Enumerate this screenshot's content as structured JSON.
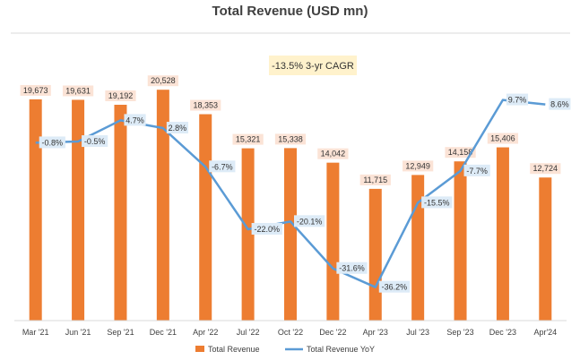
{
  "chart_data": {
    "type": "bar",
    "title": "Total Revenue (USD mn)",
    "categories": [
      "Mar '21",
      "Jun '21",
      "Sep '21",
      "Dec '21",
      "Apr '22",
      "Jul '22",
      "Oct '22",
      "Dec '22",
      "Apr '23",
      "Jul '23",
      "Sep '23",
      "Dec '23",
      "Apr'24"
    ],
    "series": [
      {
        "name": "Total Revenue",
        "kind": "bar",
        "color": "#ED7D31",
        "values": [
          19673,
          19631,
          19192,
          20528,
          18353,
          15321,
          15338,
          14042,
          11715,
          12949,
          14158,
          15406,
          12724
        ],
        "labels": [
          "19,673",
          "19,631",
          "19,192",
          "20,528",
          "18,353",
          "15,321",
          "15,338",
          "14,042",
          "11,715",
          "12,949",
          "14,158",
          "15,406",
          "12,724"
        ]
      },
      {
        "name": "Total Revenue YoY",
        "kind": "line",
        "color": "#5B9BD5",
        "values": [
          -0.8,
          -0.5,
          4.7,
          2.8,
          -6.7,
          -22.0,
          -20.1,
          -31.6,
          -36.2,
          -15.5,
          -7.7,
          9.7,
          8.6
        ],
        "labels": [
          "-0.8%",
          "-0.5%",
          "4.7%",
          "2.8%",
          "-6.7%",
          "-22.0%",
          "-20.1%",
          "-31.6%",
          "-36.2%",
          "-15.5%",
          "-7.7%",
          "9.7%",
          "8.6%"
        ]
      }
    ],
    "ylim_bar": [
      0,
      21500
    ],
    "ylim_line": [
      -40,
      14
    ],
    "annotation": "-13.5% 3-yr CAGR",
    "legend_position": "bottom",
    "grid": false
  },
  "colors": {
    "bar_label_bg": "#FBE3D6",
    "yoy_label_bg": "#DDEBF7",
    "annotation_bg": "#FFF2CC"
  }
}
